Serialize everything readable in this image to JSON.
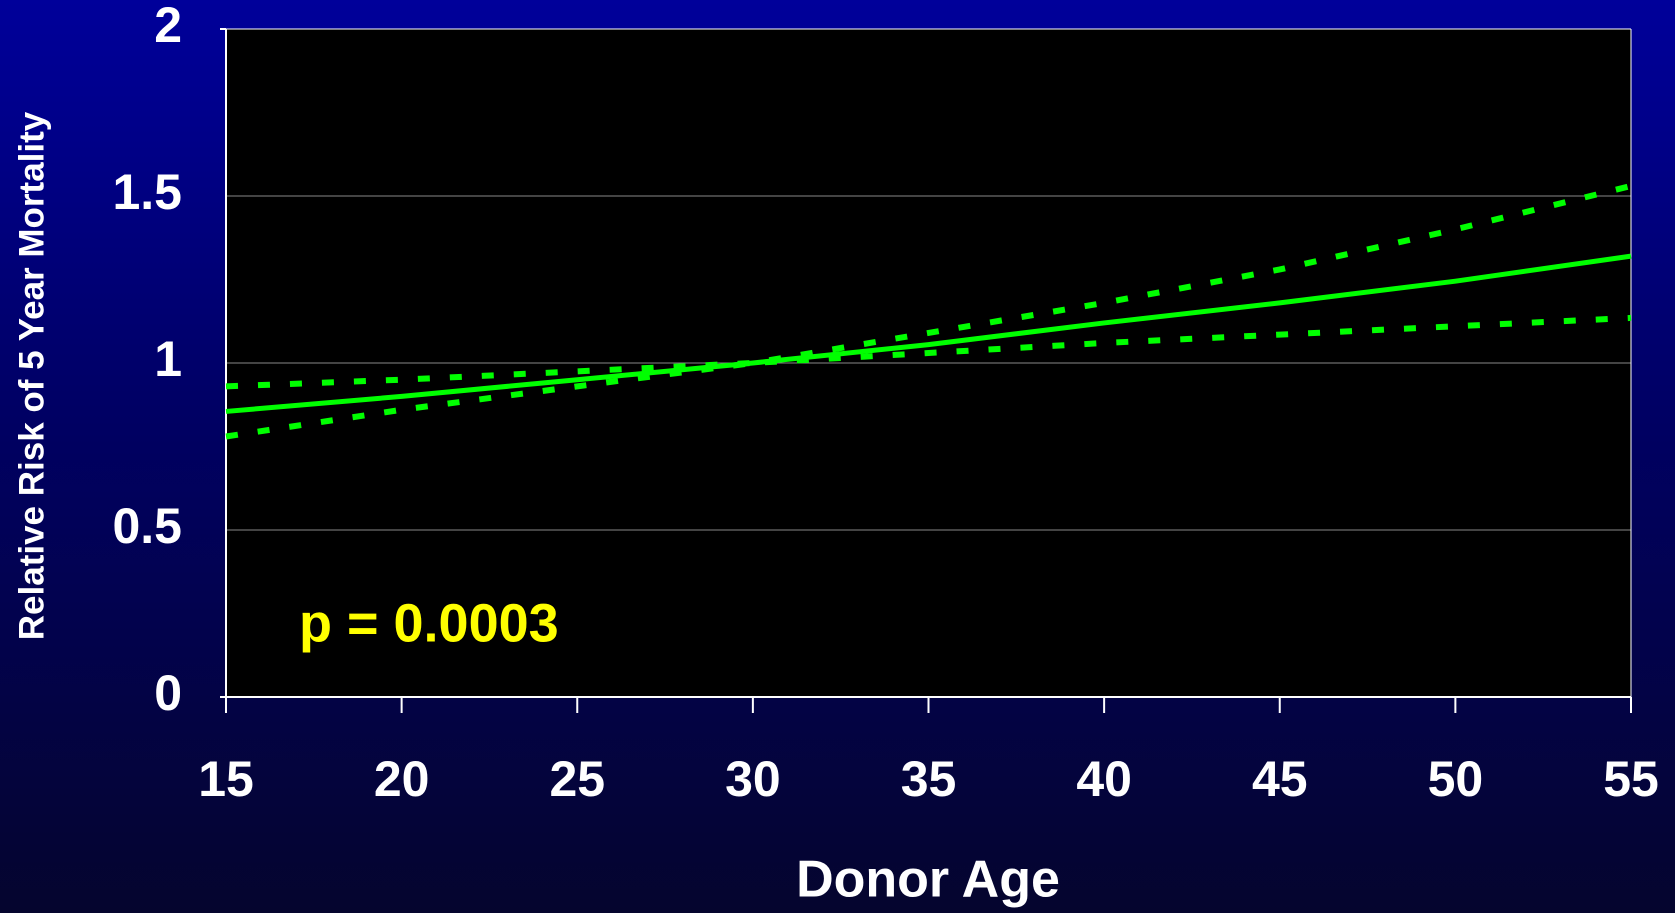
{
  "chart_data": {
    "type": "line",
    "y_label": "Relative Risk of 5 Year Mortality",
    "x_label": "Donor Age",
    "annotation": "p = 0.0003",
    "x": [
      15,
      20,
      25,
      30,
      35,
      40,
      45,
      50,
      55
    ],
    "series": [
      {
        "color": "#00ff00",
        "style": "solid",
        "values": [
          0.855,
          0.9,
          0.95,
          1.0,
          1.055,
          1.12,
          1.18,
          1.245,
          1.32
        ]
      },
      {
        "color": "#00ff00",
        "style": "dotted",
        "values": [
          0.93,
          0.95,
          0.975,
          1.0,
          1.09,
          1.18,
          1.28,
          1.4,
          1.53
        ]
      },
      {
        "color": "#00ff00",
        "style": "dotted",
        "values": [
          0.78,
          0.86,
          0.93,
          1.0,
          1.03,
          1.06,
          1.085,
          1.11,
          1.135
        ]
      }
    ],
    "xlim": [
      15,
      55
    ],
    "xticks": [
      15,
      20,
      25,
      30,
      35,
      40,
      45,
      50,
      55
    ],
    "ylim": [
      0,
      2
    ],
    "yticks": [
      0,
      0.5,
      1,
      1.5,
      2
    ],
    "grid": true
  }
}
